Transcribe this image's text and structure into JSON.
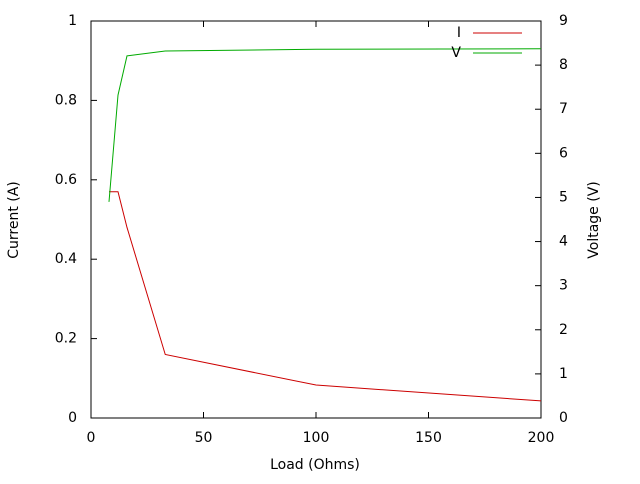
{
  "chart_data": {
    "type": "line",
    "x_label": "Load (Ohms)",
    "y_label": "Current (A)",
    "y2_label": "Voltage (V)",
    "x": [
      8,
      12,
      16,
      33,
      100,
      200
    ],
    "series": [
      {
        "name": "I",
        "color": "#cc0000",
        "values": [
          0.57,
          0.57,
          0.48,
          0.16,
          0.083,
          0.043
        ]
      },
      {
        "name": "V",
        "color": "#00aa00",
        "axis": "y2",
        "values": [
          4.9,
          7.32,
          8.21,
          8.32,
          8.36,
          8.37
        ]
      }
    ],
    "xlim": [
      0,
      200
    ],
    "xticks": [
      0,
      50,
      100,
      150,
      200
    ],
    "ylim": [
      0,
      1
    ],
    "yticks": [
      0,
      0.2,
      0.4,
      0.6,
      0.8,
      1
    ],
    "y2lim": [
      0,
      9
    ],
    "y2ticks": [
      0,
      1,
      2,
      3,
      4,
      5,
      6,
      7,
      8,
      9
    ],
    "grid": false,
    "legend": "top-right"
  }
}
